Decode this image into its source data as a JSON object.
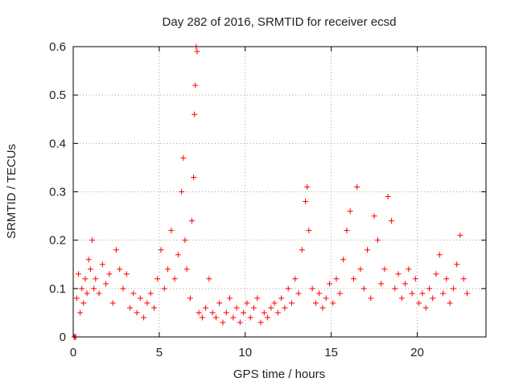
{
  "chart_data": {
    "type": "scatter",
    "title": "Day 282 of 2016, SRMTID for receiver ecsd",
    "xlabel": "GPS time / hours",
    "ylabel": "SRMTID / TECUs",
    "xlim": [
      0,
      24
    ],
    "ylim": [
      0,
      0.6
    ],
    "x_ticks": [
      0,
      5,
      10,
      15,
      20
    ],
    "x_tick_labels": [
      "0",
      "5",
      "10",
      "15",
      "20"
    ],
    "y_ticks": [
      0,
      0.1,
      0.2,
      0.3,
      0.4,
      0.5,
      0.6
    ],
    "y_tick_labels": [
      "0",
      "0.1",
      "0.2",
      "0.3",
      "0.4",
      "0.5",
      "0.6"
    ],
    "grid": true,
    "marker": "plus",
    "marker_color": "#ff0000",
    "series": [
      {
        "name": "SRMTID",
        "approximate_points": [
          [
            0.05,
            0.0
          ],
          [
            0.1,
            0.0
          ],
          [
            0.15,
            0.0
          ],
          [
            0.2,
            0.08
          ],
          [
            0.3,
            0.13
          ],
          [
            0.4,
            0.05
          ],
          [
            0.5,
            0.1
          ],
          [
            0.6,
            0.07
          ],
          [
            0.7,
            0.12
          ],
          [
            0.8,
            0.09
          ],
          [
            0.9,
            0.16
          ],
          [
            1.0,
            0.14
          ],
          [
            1.1,
            0.2
          ],
          [
            1.2,
            0.1
          ],
          [
            1.3,
            0.12
          ],
          [
            1.5,
            0.09
          ],
          [
            1.7,
            0.15
          ],
          [
            1.9,
            0.11
          ],
          [
            2.1,
            0.13
          ],
          [
            2.3,
            0.07
          ],
          [
            2.5,
            0.18
          ],
          [
            2.7,
            0.14
          ],
          [
            2.9,
            0.1
          ],
          [
            3.1,
            0.13
          ],
          [
            3.3,
            0.06
          ],
          [
            3.5,
            0.09
          ],
          [
            3.7,
            0.05
          ],
          [
            3.9,
            0.08
          ],
          [
            4.1,
            0.04
          ],
          [
            4.3,
            0.07
          ],
          [
            4.5,
            0.09
          ],
          [
            4.7,
            0.06
          ],
          [
            4.9,
            0.12
          ],
          [
            5.1,
            0.18
          ],
          [
            5.3,
            0.1
          ],
          [
            5.5,
            0.14
          ],
          [
            5.7,
            0.22
          ],
          [
            5.9,
            0.12
          ],
          [
            6.1,
            0.17
          ],
          [
            6.3,
            0.3
          ],
          [
            6.4,
            0.37
          ],
          [
            6.5,
            0.2
          ],
          [
            6.6,
            0.14
          ],
          [
            6.8,
            0.08
          ],
          [
            6.9,
            0.24
          ],
          [
            7.0,
            0.33
          ],
          [
            7.05,
            0.46
          ],
          [
            7.1,
            0.52
          ],
          [
            7.15,
            0.6
          ],
          [
            7.2,
            0.59
          ],
          [
            7.3,
            0.05
          ],
          [
            7.5,
            0.04
          ],
          [
            7.7,
            0.06
          ],
          [
            7.9,
            0.12
          ],
          [
            8.1,
            0.05
          ],
          [
            8.3,
            0.04
          ],
          [
            8.5,
            0.07
          ],
          [
            8.7,
            0.03
          ],
          [
            8.9,
            0.05
          ],
          [
            9.1,
            0.08
          ],
          [
            9.3,
            0.04
          ],
          [
            9.5,
            0.06
          ],
          [
            9.7,
            0.03
          ],
          [
            9.9,
            0.05
          ],
          [
            10.1,
            0.07
          ],
          [
            10.3,
            0.04
          ],
          [
            10.5,
            0.06
          ],
          [
            10.7,
            0.08
          ],
          [
            10.9,
            0.03
          ],
          [
            11.1,
            0.05
          ],
          [
            11.3,
            0.04
          ],
          [
            11.5,
            0.06
          ],
          [
            11.7,
            0.07
          ],
          [
            11.9,
            0.05
          ],
          [
            12.1,
            0.08
          ],
          [
            12.3,
            0.06
          ],
          [
            12.5,
            0.1
          ],
          [
            12.7,
            0.07
          ],
          [
            12.9,
            0.12
          ],
          [
            13.1,
            0.09
          ],
          [
            13.3,
            0.18
          ],
          [
            13.5,
            0.28
          ],
          [
            13.6,
            0.31
          ],
          [
            13.7,
            0.22
          ],
          [
            13.9,
            0.1
          ],
          [
            14.1,
            0.07
          ],
          [
            14.3,
            0.09
          ],
          [
            14.5,
            0.06
          ],
          [
            14.7,
            0.08
          ],
          [
            14.9,
            0.11
          ],
          [
            15.1,
            0.07
          ],
          [
            15.3,
            0.12
          ],
          [
            15.5,
            0.09
          ],
          [
            15.7,
            0.16
          ],
          [
            15.9,
            0.22
          ],
          [
            16.1,
            0.26
          ],
          [
            16.3,
            0.12
          ],
          [
            16.5,
            0.31
          ],
          [
            16.7,
            0.14
          ],
          [
            16.9,
            0.1
          ],
          [
            17.1,
            0.18
          ],
          [
            17.3,
            0.08
          ],
          [
            17.5,
            0.25
          ],
          [
            17.7,
            0.2
          ],
          [
            17.9,
            0.11
          ],
          [
            18.1,
            0.14
          ],
          [
            18.3,
            0.29
          ],
          [
            18.5,
            0.24
          ],
          [
            18.7,
            0.1
          ],
          [
            18.9,
            0.13
          ],
          [
            19.1,
            0.08
          ],
          [
            19.3,
            0.11
          ],
          [
            19.5,
            0.14
          ],
          [
            19.7,
            0.09
          ],
          [
            19.9,
            0.12
          ],
          [
            20.1,
            0.07
          ],
          [
            20.3,
            0.09
          ],
          [
            20.5,
            0.06
          ],
          [
            20.7,
            0.1
          ],
          [
            20.9,
            0.08
          ],
          [
            21.1,
            0.13
          ],
          [
            21.3,
            0.17
          ],
          [
            21.5,
            0.09
          ],
          [
            21.7,
            0.12
          ],
          [
            21.9,
            0.07
          ],
          [
            22.1,
            0.1
          ],
          [
            22.3,
            0.15
          ],
          [
            22.5,
            0.21
          ],
          [
            22.7,
            0.12
          ],
          [
            22.9,
            0.09
          ]
        ]
      }
    ]
  }
}
